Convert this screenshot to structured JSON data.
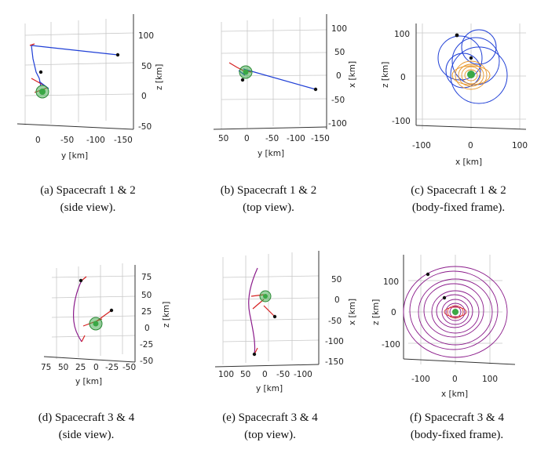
{
  "colors": {
    "grid": "#c8c8c8",
    "axis": "#333333",
    "blue": "#1f3fd6",
    "red": "#d62020",
    "orange": "#e8962a",
    "purple": "#8a1a8a",
    "green": "#3aa845",
    "dot": "#111111"
  },
  "chart_data": [
    {
      "id": "a",
      "type": "line",
      "view": "side",
      "xlabel": "y [km]",
      "zlabel": "z [km]",
      "xticks": [
        "0",
        "-50",
        "-100",
        "-150"
      ],
      "zticks": [
        "100",
        "50",
        "0",
        "-50"
      ],
      "caption": [
        "(a) Spacecraft 1 & 2",
        "(side view)."
      ],
      "series": [
        {
          "name": "",
          "color": "blue",
          "y": [
            5,
            -130
          ],
          "z": [
            82,
            70
          ]
        }
      ]
    },
    {
      "id": "b",
      "type": "line",
      "view": "top",
      "xlabel": "y [km]",
      "zlabel": "x [km]",
      "xticks": [
        "50",
        "0",
        "-50",
        "-100",
        "-150"
      ],
      "zticks": [
        "100",
        "50",
        "0",
        "-50",
        "-100"
      ],
      "caption": [
        "(b) Spacecraft 1 & 2",
        "(top view)."
      ],
      "series": [
        {
          "name": "",
          "color": "blue",
          "y": [
            0,
            -140
          ],
          "x": [
            5,
            -28
          ]
        }
      ]
    },
    {
      "id": "c",
      "type": "line",
      "view": "body-fixed",
      "xlabel": "x [km]",
      "zlabel": "z [km]",
      "xticks": [
        "-100",
        "0",
        "100"
      ],
      "zticks": [
        "100",
        "0",
        "-100"
      ],
      "caption": [
        "(c) Spacecraft 1 & 2",
        "(body-fixed frame)."
      ],
      "series": [
        {
          "name": "",
          "color": "blue"
        },
        {
          "name": "",
          "color": "orange"
        }
      ]
    },
    {
      "id": "d",
      "type": "line",
      "view": "side",
      "xlabel": "y [km]",
      "zlabel": "z [km]",
      "xticks": [
        "75",
        "50",
        "25",
        "0",
        "-25",
        "-50"
      ],
      "zticks": [
        "75",
        "50",
        "25",
        "0",
        "-25",
        "-50"
      ],
      "caption": [
        "(d) Spacecraft 3 & 4",
        "(side view)."
      ],
      "series": [
        {
          "name": "",
          "color": "purple",
          "y": [
            30,
            10
          ],
          "z": [
            72,
            -22
          ]
        }
      ]
    },
    {
      "id": "e",
      "type": "line",
      "view": "top",
      "xlabel": "y [km]",
      "zlabel": "x [km]",
      "xticks": [
        "100",
        "50",
        "0",
        "-50",
        "-100"
      ],
      "zticks": [
        "50",
        "0",
        "-50",
        "-100",
        "-150"
      ],
      "caption": [
        "(e) Spacecraft 3 & 4",
        "(top view)."
      ],
      "series": [
        {
          "name": "",
          "color": "purple",
          "y": [
            30,
            40
          ],
          "x": [
            40,
            -130
          ]
        }
      ]
    },
    {
      "id": "f",
      "type": "line",
      "view": "body-fixed",
      "xlabel": "x [km]",
      "zlabel": "z [km]",
      "xticks": [
        "-100",
        "0",
        "100"
      ],
      "zticks": [
        "100",
        "0",
        "-100"
      ],
      "caption": [
        "(f) Spacecraft 3 & 4",
        "(body-fixed frame)."
      ],
      "series": [
        {
          "name": "",
          "color": "purple"
        }
      ]
    }
  ]
}
